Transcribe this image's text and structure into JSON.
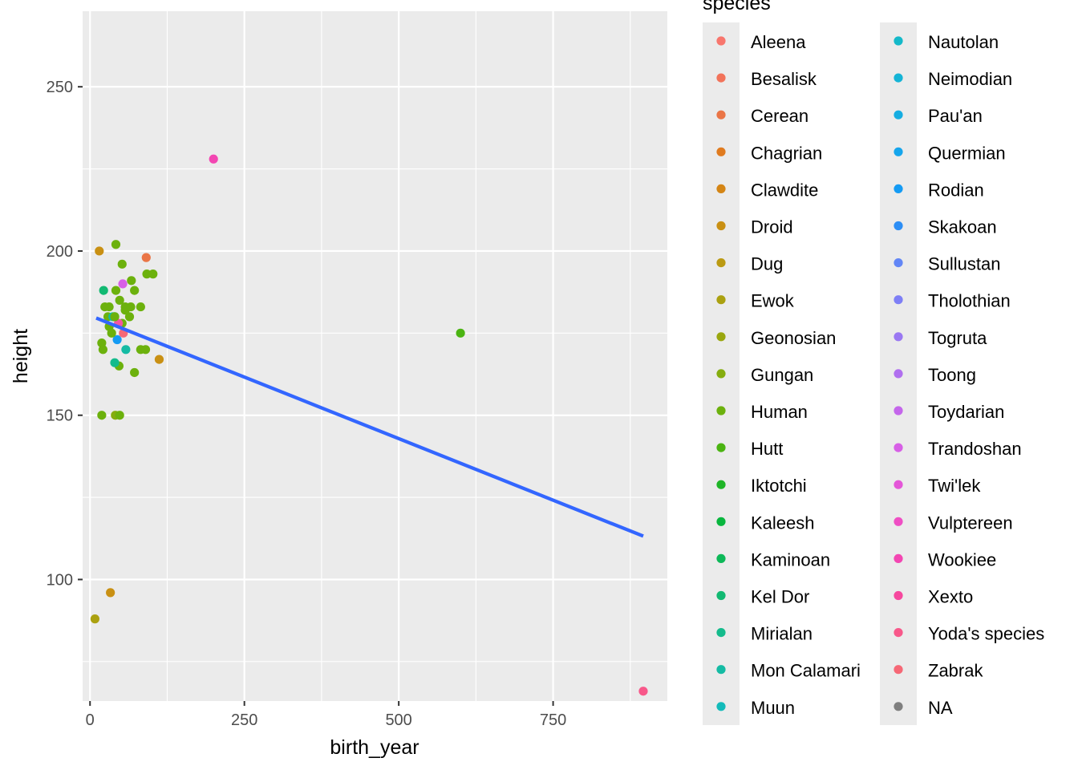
{
  "chart_data": {
    "type": "scatter",
    "xlabel": "birth_year",
    "ylabel": "height",
    "xlim": [
      -12,
      935
    ],
    "ylim": [
      63,
      273
    ],
    "x_ticks": [
      0,
      250,
      500,
      750
    ],
    "y_ticks": [
      100,
      150,
      200,
      250
    ],
    "x_minor": [
      125,
      375,
      625,
      875
    ],
    "y_minor": [
      75,
      125,
      175,
      225
    ],
    "grid": true,
    "legend": {
      "title": "species",
      "position": "right",
      "columns": 2
    },
    "species": [
      {
        "name": "Aleena",
        "color": "#F8766D"
      },
      {
        "name": "Besalisk",
        "color": "#F2735A"
      },
      {
        "name": "Cerean",
        "color": "#EA7546"
      },
      {
        "name": "Chagrian",
        "color": "#E07B1F"
      },
      {
        "name": "Clawdite",
        "color": "#D48515"
      },
      {
        "name": "Droid",
        "color": "#C99013"
      },
      {
        "name": "Dug",
        "color": "#BB9A12"
      },
      {
        "name": "Ewok",
        "color": "#ABA110"
      },
      {
        "name": "Geonosian",
        "color": "#9AA70F"
      },
      {
        "name": "Gungan",
        "color": "#85AD0F"
      },
      {
        "name": "Human",
        "color": "#6CB10D"
      },
      {
        "name": "Hutt",
        "color": "#4BB412"
      },
      {
        "name": "Iktotchi",
        "color": "#1FB527"
      },
      {
        "name": "Kaleesh",
        "color": "#09B63E"
      },
      {
        "name": "Kaminoan",
        "color": "#0DB858"
      },
      {
        "name": "Kel Dor",
        "color": "#12B972"
      },
      {
        "name": "Mirialan",
        "color": "#14BB8C"
      },
      {
        "name": "Mon Calamari",
        "color": "#15BBA4"
      },
      {
        "name": "Muun",
        "color": "#14BBBA"
      },
      {
        "name": "Nautolan",
        "color": "#14B9C9"
      },
      {
        "name": "Neimodian",
        "color": "#15B4D6"
      },
      {
        "name": "Pau'an",
        "color": "#15ADE1"
      },
      {
        "name": "Quermian",
        "color": "#15A5EC"
      },
      {
        "name": "Rodian",
        "color": "#149BF4"
      },
      {
        "name": "Skakoan",
        "color": "#2D8EF5"
      },
      {
        "name": "Sullustan",
        "color": "#6286F6"
      },
      {
        "name": "Tholothian",
        "color": "#7E7FF6"
      },
      {
        "name": "Togruta",
        "color": "#9A78F2"
      },
      {
        "name": "Toong",
        "color": "#B06FEF"
      },
      {
        "name": "Toydarian",
        "color": "#C466EB"
      },
      {
        "name": "Trandoshan",
        "color": "#D75FE6"
      },
      {
        "name": "Twi'lek",
        "color": "#E456D8"
      },
      {
        "name": "Vulptereen",
        "color": "#EF4EC4"
      },
      {
        "name": "Wookiee",
        "color": "#F346B2"
      },
      {
        "name": "Xexto",
        "color": "#F6489E"
      },
      {
        "name": "Yoda's species",
        "color": "#F8588A"
      },
      {
        "name": "Zabrak",
        "color": "#F66876"
      },
      {
        "name": "NA",
        "color": "#7F7F7F"
      }
    ],
    "points": [
      {
        "x": 19,
        "y": 172,
        "color": "#6CB10D"
      },
      {
        "x": 112,
        "y": 167,
        "color": "#C99013"
      },
      {
        "x": 33,
        "y": 96,
        "color": "#C99013"
      },
      {
        "x": 41.9,
        "y": 202,
        "color": "#6CB10D"
      },
      {
        "x": 19,
        "y": 150,
        "color": "#6CB10D"
      },
      {
        "x": 52,
        "y": 178,
        "color": "#6CB10D"
      },
      {
        "x": 47,
        "y": 165,
        "color": "#6CB10D"
      },
      {
        "x": 24,
        "y": 183,
        "color": "#6CB10D"
      },
      {
        "x": 57,
        "y": 182,
        "color": "#6CB10D"
      },
      {
        "x": 41.9,
        "y": 188,
        "color": "#6CB10D"
      },
      {
        "x": 64,
        "y": 180,
        "color": "#6CB10D"
      },
      {
        "x": 200,
        "y": 228,
        "color": "#F346B2"
      },
      {
        "x": 29,
        "y": 180,
        "color": "#6CB10D"
      },
      {
        "x": 44,
        "y": 173,
        "color": "#149BF4"
      },
      {
        "x": 600,
        "y": 175,
        "color": "#4BB412"
      },
      {
        "x": 21,
        "y": 170,
        "color": "#6CB10D"
      },
      {
        "x": 896,
        "y": 66,
        "color": "#F8588A"
      },
      {
        "x": 82,
        "y": 170,
        "color": "#6CB10D"
      },
      {
        "x": 53,
        "y": 190,
        "color": "#D75FE6"
      },
      {
        "x": 31,
        "y": 177,
        "color": "#6CB10D"
      },
      {
        "x": 31,
        "y": 183,
        "color": "#6CB10D"
      },
      {
        "x": 37,
        "y": 180,
        "color": "#15BBA4"
      },
      {
        "x": 41,
        "y": 150,
        "color": "#85AD0F"
      },
      {
        "x": 48,
        "y": 150,
        "color": "#6CB10D"
      },
      {
        "x": 8,
        "y": 88,
        "color": "#ABA110"
      },
      {
        "x": 52,
        "y": 196,
        "color": "#6CB10D"
      },
      {
        "x": 92,
        "y": 193,
        "color": "#6CB10D"
      },
      {
        "x": 91,
        "y": 198,
        "color": "#EA7546"
      },
      {
        "x": 54,
        "y": 175,
        "color": "#F66876"
      },
      {
        "x": 72,
        "y": 188,
        "color": "#6CB10D"
      },
      {
        "x": 22,
        "y": 188,
        "color": "#12B972"
      },
      {
        "x": 102,
        "y": 193,
        "color": "#6CB10D"
      },
      {
        "x": 67,
        "y": 191,
        "color": "#6CB10D"
      },
      {
        "x": 66,
        "y": 183,
        "color": "#6CB10D"
      },
      {
        "x": 82,
        "y": 183,
        "color": "#6CB10D"
      },
      {
        "x": 15,
        "y": 200,
        "color": "#C99013"
      },
      {
        "x": 72,
        "y": 163,
        "color": "#6CB10D"
      },
      {
        "x": 48,
        "y": 185,
        "color": "#6CB10D"
      },
      {
        "x": 58,
        "y": 170,
        "color": "#15BBA4"
      },
      {
        "x": 40,
        "y": 166,
        "color": "#14BB8C"
      },
      {
        "x": 57,
        "y": 183,
        "color": "#6CB10D"
      },
      {
        "x": 35,
        "y": 175,
        "color": "#6CB10D"
      },
      {
        "x": 46,
        "y": 178,
        "color": "#F456A0"
      },
      {
        "x": 40,
        "y": 180,
        "color": "#14BB8C"
      },
      {
        "x": 90,
        "y": 170,
        "color": "#6CB10D"
      },
      {
        "x": 40,
        "y": 180,
        "color": "#6CB10D"
      }
    ],
    "trend_line": {
      "x": [
        10,
        896
      ],
      "y": [
        179.6,
        113.2
      ],
      "color": "#3366FF"
    }
  }
}
